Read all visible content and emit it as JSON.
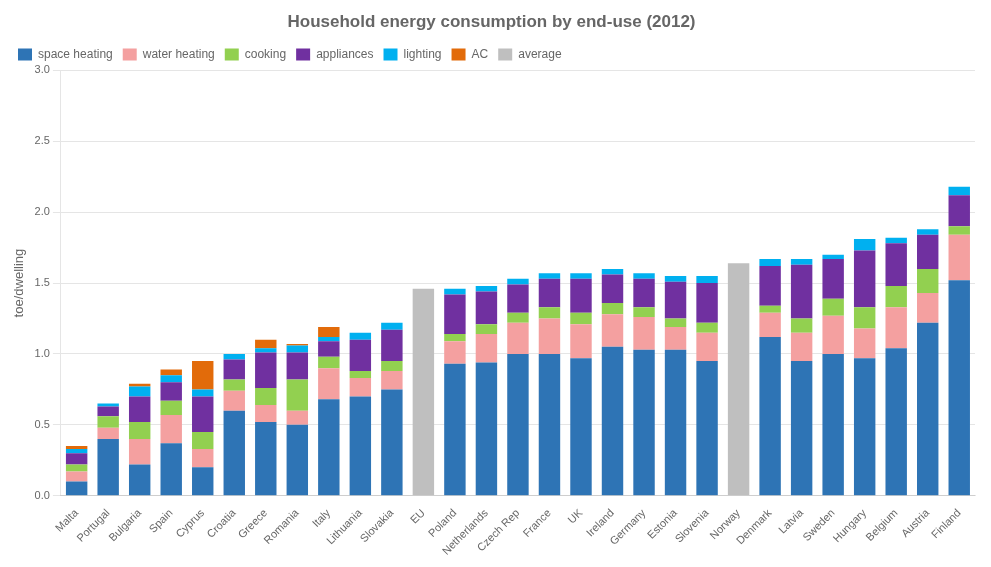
{
  "chart_data": {
    "type": "bar",
    "title": "Household energy consumption by end-use (2012)",
    "ylabel": "toe/dwelling",
    "categories": [
      "Malta",
      "Portugal",
      "Bulgaria",
      "Spain",
      "Cyprus",
      "Croatia",
      "Greece",
      "Romania",
      "Italy",
      "Lithuania",
      "Slovakia",
      "EU",
      "Poland",
      "Netherlands",
      "Czech Rep",
      "France",
      "UK",
      "Ireland",
      "Germany",
      "Estonia",
      "Slovenia",
      "Norway",
      "Denmark",
      "Latvia",
      "Sweden",
      "Hungary",
      "Belgium",
      "Austria",
      "Finland"
    ],
    "series": [
      {
        "name": "space heating",
        "color": "#2e74b5",
        "values": [
          0.1,
          0.4,
          0.22,
          0.37,
          0.2,
          0.6,
          0.52,
          0.5,
          0.68,
          0.7,
          0.75,
          0.0,
          0.93,
          0.94,
          1.0,
          1.0,
          0.97,
          1.05,
          1.03,
          1.03,
          0.95,
          0.0,
          1.12,
          0.95,
          1.0,
          0.97,
          1.04,
          1.22,
          1.52
        ]
      },
      {
        "name": "water heating",
        "color": "#f4a0a0",
        "values": [
          0.07,
          0.08,
          0.18,
          0.2,
          0.13,
          0.14,
          0.12,
          0.1,
          0.22,
          0.13,
          0.13,
          0.0,
          0.16,
          0.2,
          0.22,
          0.25,
          0.24,
          0.23,
          0.23,
          0.16,
          0.2,
          0.0,
          0.17,
          0.2,
          0.27,
          0.21,
          0.29,
          0.21,
          0.32
        ]
      },
      {
        "name": "cooking",
        "color": "#92d050",
        "values": [
          0.05,
          0.08,
          0.12,
          0.1,
          0.12,
          0.08,
          0.12,
          0.22,
          0.08,
          0.05,
          0.07,
          0.0,
          0.05,
          0.07,
          0.07,
          0.08,
          0.08,
          0.08,
          0.07,
          0.06,
          0.07,
          0.0,
          0.05,
          0.1,
          0.12,
          0.15,
          0.15,
          0.17,
          0.06
        ]
      },
      {
        "name": "appliances",
        "color": "#7030a0",
        "values": [
          0.08,
          0.07,
          0.18,
          0.13,
          0.25,
          0.14,
          0.25,
          0.19,
          0.11,
          0.22,
          0.22,
          0.0,
          0.28,
          0.23,
          0.2,
          0.2,
          0.24,
          0.2,
          0.2,
          0.26,
          0.28,
          0.0,
          0.28,
          0.38,
          0.28,
          0.4,
          0.3,
          0.24,
          0.22
        ]
      },
      {
        "name": "lighting",
        "color": "#00b0f0",
        "values": [
          0.03,
          0.02,
          0.07,
          0.05,
          0.05,
          0.04,
          0.03,
          0.05,
          0.03,
          0.05,
          0.05,
          0.0,
          0.04,
          0.04,
          0.04,
          0.04,
          0.04,
          0.04,
          0.04,
          0.04,
          0.05,
          0.0,
          0.05,
          0.04,
          0.03,
          0.08,
          0.04,
          0.04,
          0.06
        ]
      },
      {
        "name": "AC",
        "color": "#e26b0a",
        "values": [
          0.02,
          0.0,
          0.02,
          0.04,
          0.2,
          0.0,
          0.06,
          0.01,
          0.07,
          0.0,
          0.0,
          0.0,
          0.0,
          0.0,
          0.0,
          0.0,
          0.0,
          0.0,
          0.0,
          0.0,
          0.0,
          0.0,
          0.0,
          0.0,
          0.0,
          0.0,
          0.0,
          0.0,
          0.0
        ]
      },
      {
        "name": "average",
        "color": "#bfbfbf",
        "values": [
          null,
          null,
          null,
          null,
          null,
          null,
          null,
          null,
          null,
          null,
          null,
          1.46,
          null,
          null,
          null,
          null,
          null,
          null,
          null,
          null,
          null,
          1.64,
          null,
          null,
          null,
          null,
          null,
          null,
          null
        ]
      }
    ],
    "stacked": true,
    "ylim": [
      0,
      3.0
    ],
    "yticks": [
      {
        "value": 0,
        "label": "0.0"
      },
      0.5,
      {
        "value": 1,
        "label": "1.0"
      },
      1.5,
      {
        "value": 2,
        "label": "2.0"
      },
      2.5,
      {
        "value": 3,
        "label": "3.0"
      }
    ],
    "grid": true,
    "legend": "upper left"
  }
}
